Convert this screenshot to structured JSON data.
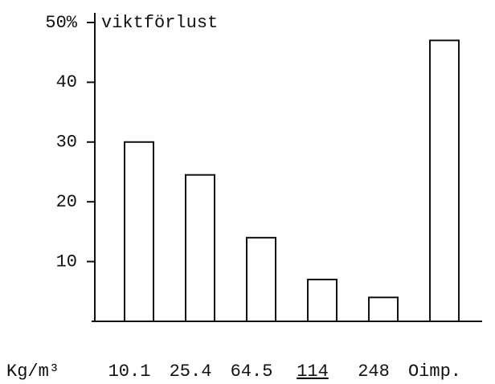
{
  "chart_data": {
    "type": "bar",
    "y_label": "viktförlust",
    "x_label": "Kg/m³",
    "categories": [
      "10.1",
      "25.4",
      "64.5",
      "114",
      "248",
      "Oimp."
    ],
    "values": [
      30,
      24.5,
      14,
      7,
      4,
      47
    ],
    "color": "#ffffff",
    "ylim": [
      0,
      50
    ],
    "yticks": [
      10,
      20,
      30,
      40,
      {
        "value": 50,
        "label": "50%"
      }
    ]
  }
}
